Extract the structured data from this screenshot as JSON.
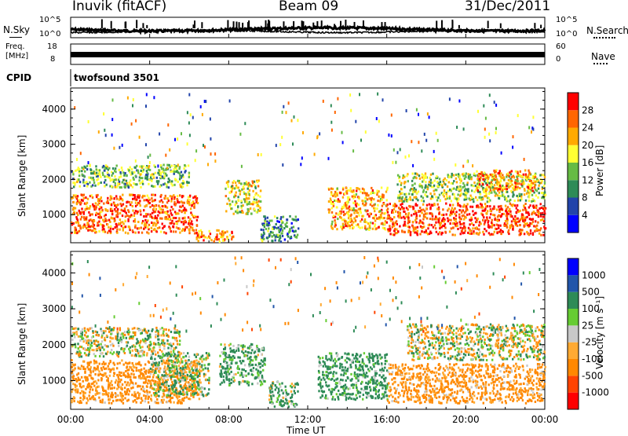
{
  "header": {
    "station": "Inuvik (fitACF)",
    "beam": "Beam 09",
    "date": "31/Dec/2011"
  },
  "noise_panel": {
    "left_label": "N.Sky",
    "right_label": "N.Search",
    "left_ticks": [
      "10^5",
      "10^0"
    ],
    "right_ticks": [
      "10^5",
      "10^0"
    ]
  },
  "freq_panel": {
    "left_label_line1": "Freq.",
    "left_label_line2": "[MHz]",
    "right_label": "Nave",
    "left_ticks": [
      "18",
      "8"
    ],
    "right_ticks": [
      "60",
      "0"
    ]
  },
  "cpid": {
    "label": "CPID",
    "value": "twofsound 3501"
  },
  "colors": {
    "power_scale": [
      "#0000ff",
      "#2244aa",
      "#2e8b57",
      "#66bb44",
      "#ffff33",
      "#ffaa00",
      "#ff6600",
      "#ff0000"
    ],
    "velocity_scale": [
      "#ff0000",
      "#ff4400",
      "#ff8800",
      "#ffaa33",
      "#c8c8c8",
      "#66cc33",
      "#2e8b57",
      "#2255aa",
      "#0000ff"
    ]
  },
  "chart_data": [
    {
      "type": "heatmap",
      "quantity": "Power",
      "colorbar_label": "Power [dB]",
      "colorbar_ticks": [
        "28",
        "24",
        "20",
        "16",
        "12",
        "8",
        "4"
      ],
      "ylabel": "Slant Range [km]",
      "yticks": [
        "4000",
        "3000",
        "2000",
        "1000"
      ],
      "ylim": [
        200,
        4600
      ],
      "xlim": [
        0,
        24
      ],
      "regions": [
        {
          "t0": 0.0,
          "t1": 6.4,
          "r0": 500,
          "r1": 1600,
          "value": 26
        },
        {
          "t0": 0.0,
          "t1": 6.0,
          "r0": 1800,
          "r1": 2450,
          "value": 14
        },
        {
          "t0": 6.3,
          "t1": 8.2,
          "r0": 250,
          "r1": 600,
          "value": 24
        },
        {
          "t0": 7.8,
          "t1": 9.6,
          "r0": 1050,
          "r1": 2000,
          "value": 18
        },
        {
          "t0": 9.6,
          "t1": 11.5,
          "r0": 250,
          "r1": 1000,
          "value": 10
        },
        {
          "t0": 13.0,
          "t1": 16.0,
          "r0": 600,
          "r1": 1800,
          "value": 22
        },
        {
          "t0": 16.0,
          "t1": 24.0,
          "r0": 450,
          "r1": 1350,
          "value": 28
        },
        {
          "t0": 16.5,
          "t1": 24.0,
          "r0": 1400,
          "r1": 2200,
          "value": 16
        },
        {
          "t0": 20.5,
          "t1": 23.5,
          "r0": 1700,
          "r1": 2300,
          "value": 24
        }
      ]
    },
    {
      "type": "heatmap",
      "quantity": "Velocity",
      "colorbar_label": "Velocity [m s⁻¹]",
      "colorbar_ticks": [
        "1000",
        "500",
        "100",
        "25",
        "-25",
        "-100",
        "-500",
        "-1000"
      ],
      "ylabel": "Slant Range [km]",
      "yticks": [
        "4000",
        "3000",
        "2000",
        "1000"
      ],
      "ylim": [
        200,
        4600
      ],
      "xlim": [
        0,
        24
      ],
      "xlabel": "Time UT",
      "xticks": [
        "00:00",
        "04:00",
        "08:00",
        "12:00",
        "16:00",
        "20:00",
        "00:00"
      ],
      "regions": [
        {
          "t0": 0.0,
          "t1": 6.5,
          "r0": 400,
          "r1": 1600,
          "value": -200
        },
        {
          "t0": 0.0,
          "t1": 5.5,
          "r0": 1700,
          "r1": 2500,
          "value": 0
        },
        {
          "t0": 4.0,
          "t1": 7.0,
          "r0": 600,
          "r1": 1800,
          "value": 80
        },
        {
          "t0": 7.5,
          "t1": 9.8,
          "r0": 900,
          "r1": 2050,
          "value": 150
        },
        {
          "t0": 10.0,
          "t1": 11.5,
          "r0": 300,
          "r1": 1000,
          "value": 120
        },
        {
          "t0": 12.5,
          "t1": 16.0,
          "r0": 500,
          "r1": 1800,
          "value": 200
        },
        {
          "t0": 16.0,
          "t1": 24.0,
          "r0": 400,
          "r1": 1500,
          "value": -200
        },
        {
          "t0": 17.0,
          "t1": 24.0,
          "r0": 1600,
          "r1": 2600,
          "value": 0
        }
      ]
    }
  ]
}
